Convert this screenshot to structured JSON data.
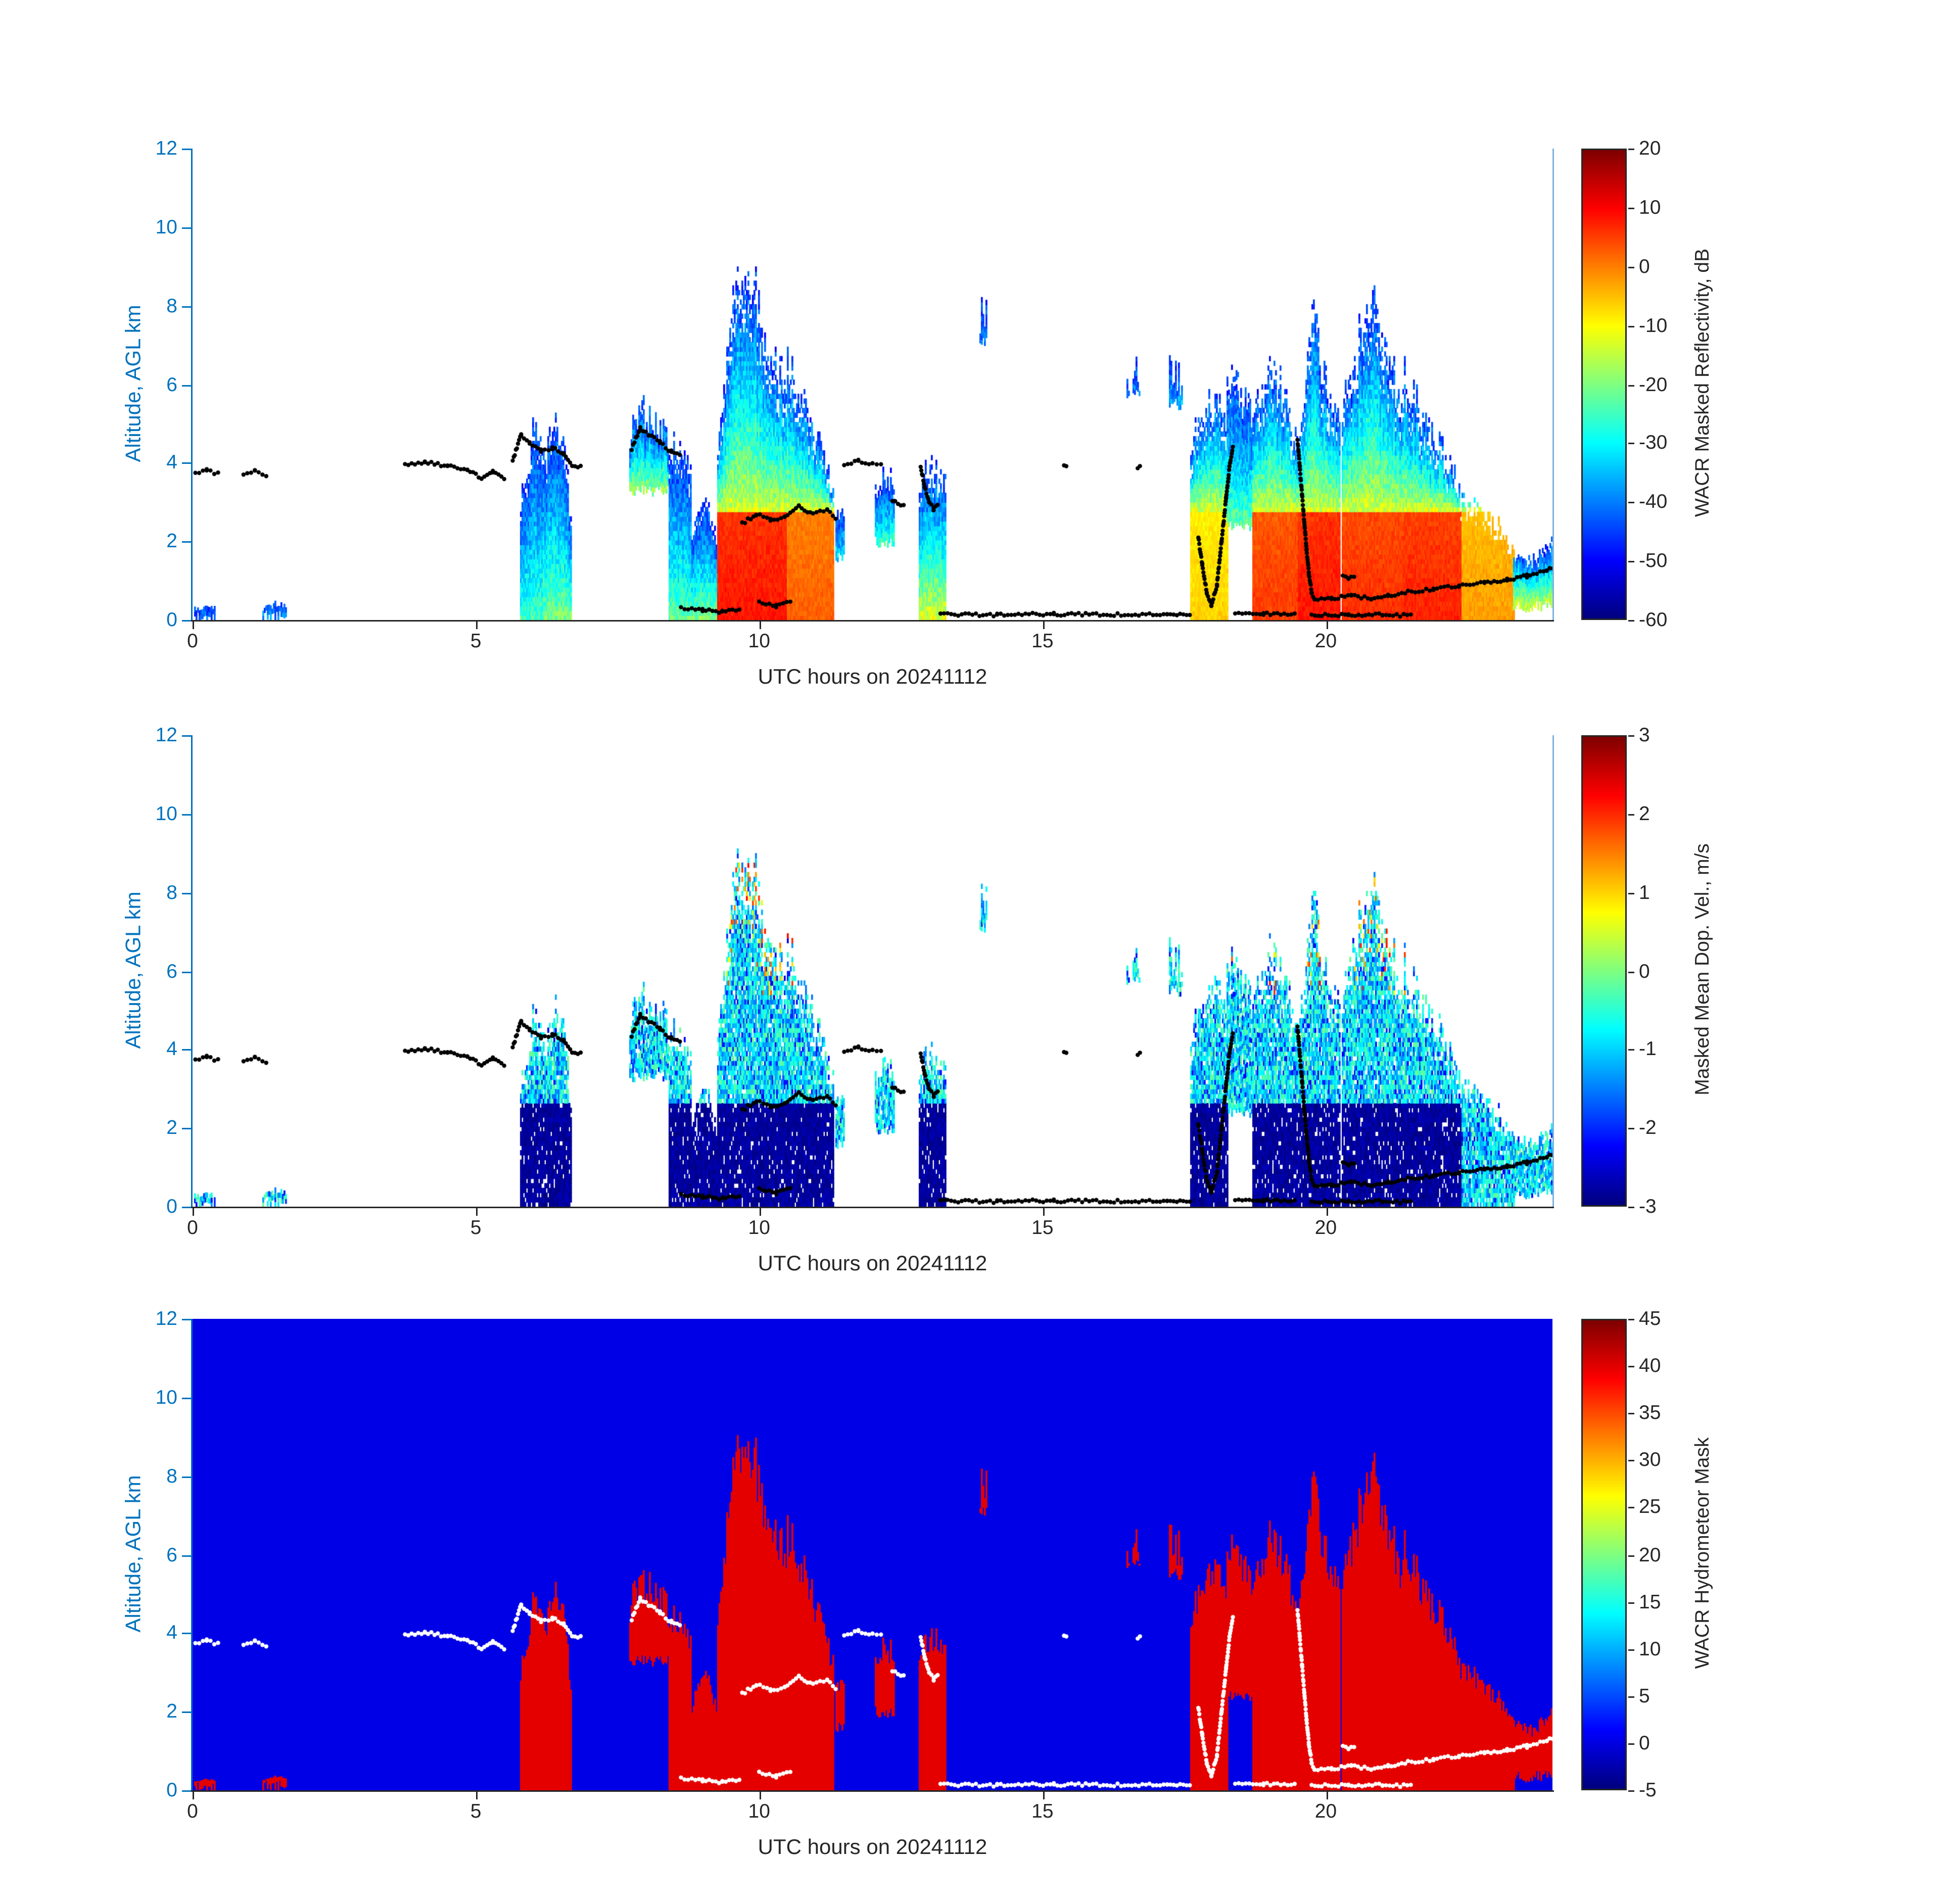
{
  "colors": {
    "y_axis": "#0072BD",
    "x_axis": "#262626",
    "right_spine": "#7FB2DF",
    "background": "#FFFFFF",
    "track_black": "#000000",
    "track_white": "#FFFFFF"
  },
  "panels": [
    {
      "id": "reflectivity",
      "ylabel": "Altitude, AGL km",
      "xlabel": "UTC hours on 20241112",
      "ylim": [
        0,
        12
      ],
      "xlim": [
        0,
        24
      ],
      "yticks": [
        0,
        2,
        4,
        6,
        8,
        10,
        12
      ],
      "xticks": [
        0,
        5,
        10,
        15,
        20
      ],
      "field": "reflectivity",
      "track_color": "#000000",
      "right_spine": true,
      "colorbar": {
        "title": "WACR Masked Reflectivity, dB",
        "min": -60,
        "max": 20,
        "ticks": [
          20,
          10,
          0,
          -10,
          -20,
          -30,
          -40,
          -50,
          -60
        ]
      }
    },
    {
      "id": "velocity",
      "ylabel": "Altitude, AGL km",
      "xlabel": "UTC hours on 20241112",
      "ylim": [
        0,
        12
      ],
      "xlim": [
        0,
        24
      ],
      "yticks": [
        0,
        2,
        4,
        6,
        8,
        10,
        12
      ],
      "xticks": [
        0,
        5,
        10,
        15,
        20
      ],
      "field": "velocity",
      "track_color": "#000000",
      "right_spine": true,
      "colorbar": {
        "title": "Masked Mean Dop. Vel., m/s",
        "min": -3,
        "max": 3,
        "ticks": [
          3,
          2,
          1,
          0,
          -1,
          -2,
          -3
        ]
      }
    },
    {
      "id": "mask",
      "ylabel": "Altitude, AGL km",
      "xlabel": "UTC hours on 20241112",
      "ylim": [
        0,
        12
      ],
      "xlim": [
        0,
        24
      ],
      "yticks": [
        0,
        2,
        4,
        6,
        8,
        10,
        12
      ],
      "xticks": [
        0,
        5,
        10,
        15,
        20
      ],
      "field": "mask",
      "track_color": "#FFFFFF",
      "right_spine": false,
      "colorbar": {
        "title": "WACR Hydrometeor Mask",
        "min": -5,
        "max": 45,
        "ticks": [
          45,
          40,
          35,
          30,
          25,
          20,
          15,
          10,
          5,
          0,
          -5
        ]
      }
    }
  ],
  "chart_data": {
    "type": "heatmap",
    "x": {
      "label": "UTC hours on 20241112",
      "range": [
        0,
        24
      ],
      "ticks": [
        0,
        5,
        10,
        15,
        20
      ]
    },
    "y": {
      "label": "Altitude, AGL km",
      "range": [
        0,
        12
      ],
      "ticks": [
        0,
        2,
        4,
        6,
        8,
        10,
        12
      ]
    },
    "fields": [
      {
        "name": "WACR Masked Reflectivity, dB",
        "colormap": "jet",
        "clim": [
          -60,
          20
        ]
      },
      {
        "name": "Masked Mean Dop. Vel., m/s",
        "colormap": "jet",
        "clim": [
          -3,
          3
        ]
      },
      {
        "name": "WACR Hydrometeor Mask",
        "colormap": "jet",
        "clim": [
          -5,
          45
        ],
        "background_value": 0,
        "cloud_value": 40
      }
    ],
    "clouds": [
      {
        "t0": 0.05,
        "t1": 0.4,
        "base": 0.05,
        "tops": [
          0.22,
          0.3,
          0.24
        ],
        "dbz": -42,
        "vd": false
      },
      {
        "t0": 1.25,
        "t1": 1.65,
        "base": 0.1,
        "tops": [
          0.28,
          0.35,
          0.3
        ],
        "dbz": -40,
        "vd": false
      },
      {
        "t0": 5.8,
        "t1": 6.17,
        "base": 0,
        "tops": [
          3.2,
          4.6,
          4.3
        ],
        "dbz": -24,
        "vd": true
      },
      {
        "t0": 6.2,
        "t1": 6.68,
        "base": 0,
        "tops": [
          4.2,
          5.0,
          4.4,
          2.6
        ],
        "dbz": -20,
        "vd": true
      },
      {
        "t0": 7.72,
        "t1": 8.38,
        "base": 3.3,
        "tops": [
          4.7,
          5.25,
          5.05,
          4.5
        ],
        "dbz": -18,
        "vd": false
      },
      {
        "t0": 8.42,
        "t1": 8.8,
        "base": 0,
        "tops": [
          4.5,
          4.2,
          3.6
        ],
        "dbz": -22,
        "vd": true
      },
      {
        "t0": 8.82,
        "t1": 9.28,
        "base": 0,
        "tops": [
          2.2,
          3.0,
          1.8
        ],
        "dbz": -20,
        "vd": true
      },
      {
        "t0": 9.28,
        "t1": 10.5,
        "base": 0,
        "tops": [
          4.5,
          7.4,
          9.1,
          8.5,
          7.2,
          6.6,
          5.6
        ],
        "dbz": 9,
        "vd": true
      },
      {
        "t0": 10.5,
        "t1": 11.3,
        "base": 0,
        "tops": [
          6.4,
          5.6,
          4.4,
          3.2
        ],
        "dbz": 3,
        "vd": true
      },
      {
        "t0": 11.35,
        "t1": 11.5,
        "base": 1.6,
        "tops": [
          2.6,
          2.9
        ],
        "dbz": -32,
        "vd": false
      },
      {
        "t0": 12.05,
        "t1": 12.38,
        "base": 2.0,
        "tops": [
          3.3,
          3.7,
          3.4
        ],
        "dbz": -26,
        "vd": false
      },
      {
        "t0": 12.82,
        "t1": 13.28,
        "base": 0,
        "tops": [
          3.5,
          3.9,
          3.4
        ],
        "dbz": -12,
        "vd": true
      },
      {
        "t0": 13.9,
        "t1": 14.05,
        "base": 7.1,
        "tops": [
          7.5
        ],
        "dbz": -42,
        "vd": false
      },
      {
        "t0": 16.5,
        "t1": 16.7,
        "base": 5.8,
        "tops": [
          6.2
        ],
        "dbz": -40,
        "vd": false
      },
      {
        "t0": 17.25,
        "t1": 17.45,
        "base": 5.5,
        "tops": [
          6.3
        ],
        "dbz": -36,
        "vd": false
      },
      {
        "t0": 17.62,
        "t1": 18.25,
        "base": 0,
        "tops": [
          4.4,
          5.6,
          5.1
        ],
        "dbz": -6,
        "vd": true
      },
      {
        "t0": 18.25,
        "t1": 18.72,
        "base": 2.4,
        "tops": [
          6.3,
          5.9,
          4.8
        ],
        "dbz": -22,
        "vd": false
      },
      {
        "t0": 18.72,
        "t1": 19.48,
        "base": 0,
        "tops": [
          4.9,
          6.6,
          5.9,
          4.6
        ],
        "dbz": 6,
        "vd": true
      },
      {
        "t0": 19.52,
        "t1": 20.25,
        "base": 0,
        "tops": [
          4.7,
          7.6,
          5.8,
          4.9
        ],
        "dbz": 9,
        "vd": true
      },
      {
        "t0": 20.3,
        "t1": 21.38,
        "base": 0,
        "tops": [
          5.4,
          7.0,
          7.9,
          6.6,
          5.3
        ],
        "dbz": 7,
        "vd": true
      },
      {
        "t0": 21.38,
        "t1": 22.4,
        "base": 0,
        "tops": [
          6.2,
          5.0,
          4.4,
          3.0
        ],
        "dbz": 8,
        "vd": true
      },
      {
        "t0": 22.4,
        "t1": 23.32,
        "base": 0,
        "tops": [
          3.1,
          2.6,
          1.9
        ],
        "dbz": -2,
        "vd": false
      },
      {
        "t0": 23.32,
        "t1": 24.0,
        "base": 0.35,
        "tops": [
          1.7,
          1.5,
          2.1
        ],
        "dbz": -14,
        "vd": false
      }
    ],
    "track_segments": [
      [
        [
          0.05,
          3.75
        ],
        [
          0.25,
          3.82
        ],
        [
          0.45,
          3.72
        ]
      ],
      [
        [
          0.9,
          3.7
        ],
        [
          1.1,
          3.78
        ],
        [
          1.3,
          3.7
        ]
      ],
      [
        [
          3.75,
          3.95
        ],
        [
          4.1,
          4.02
        ],
        [
          4.5,
          3.92
        ],
        [
          4.85,
          3.8
        ],
        [
          5.1,
          3.62
        ],
        [
          5.3,
          3.78
        ],
        [
          5.5,
          3.6
        ]
      ],
      [
        [
          5.65,
          4.05
        ],
        [
          5.8,
          4.72
        ],
        [
          5.95,
          4.5
        ],
        [
          6.15,
          4.32
        ],
        [
          6.35,
          4.38
        ],
        [
          6.55,
          4.22
        ],
        [
          6.7,
          3.95
        ],
        [
          6.85,
          3.9
        ]
      ],
      [
        [
          7.75,
          4.35
        ],
        [
          7.9,
          4.88
        ],
        [
          8.05,
          4.72
        ],
        [
          8.25,
          4.52
        ],
        [
          8.45,
          4.28
        ],
        [
          8.6,
          4.22
        ]
      ],
      [
        [
          8.62,
          0.32
        ],
        [
          9.0,
          0.25
        ],
        [
          9.35,
          0.2
        ],
        [
          9.65,
          0.28
        ]
      ],
      [
        [
          9.7,
          2.45
        ],
        [
          9.95,
          2.7
        ],
        [
          10.2,
          2.55
        ],
        [
          10.45,
          2.62
        ],
        [
          10.7,
          2.9
        ],
        [
          10.95,
          2.7
        ],
        [
          11.2,
          2.82
        ],
        [
          11.35,
          2.6
        ]
      ],
      [
        [
          10.0,
          0.45
        ],
        [
          10.3,
          0.35
        ],
        [
          10.55,
          0.5
        ]
      ],
      [
        [
          11.5,
          3.98
        ],
        [
          11.75,
          4.05
        ],
        [
          12.0,
          3.98
        ],
        [
          12.15,
          3.95
        ]
      ],
      [
        [
          12.35,
          3.05
        ],
        [
          12.55,
          2.9
        ]
      ],
      [
        [
          12.85,
          3.9
        ],
        [
          12.92,
          3.4
        ],
        [
          13.0,
          3.0
        ],
        [
          13.08,
          2.82
        ],
        [
          13.15,
          2.95
        ]
      ],
      [
        [
          13.2,
          0.15
        ],
        [
          14.2,
          0.13
        ],
        [
          15.2,
          0.15
        ],
        [
          16.2,
          0.13
        ],
        [
          17.2,
          0.15
        ],
        [
          17.6,
          0.14
        ]
      ],
      [
        [
          15.38,
          3.9
        ],
        [
          15.42,
          3.9
        ]
      ],
      [
        [
          16.68,
          3.9
        ],
        [
          16.72,
          3.9
        ]
      ],
      [
        [
          17.75,
          2.1
        ],
        [
          17.82,
          1.4
        ],
        [
          17.9,
          0.7
        ],
        [
          17.98,
          0.35
        ],
        [
          18.08,
          0.9
        ],
        [
          18.16,
          2.0
        ],
        [
          18.24,
          3.1
        ],
        [
          18.3,
          3.9
        ],
        [
          18.36,
          4.4
        ]
      ],
      [
        [
          18.4,
          0.15
        ],
        [
          18.9,
          0.15
        ],
        [
          19.45,
          0.15
        ]
      ],
      [
        [
          19.5,
          4.6
        ],
        [
          19.54,
          3.9
        ],
        [
          19.58,
          3.2
        ],
        [
          19.62,
          2.5
        ],
        [
          19.66,
          1.8
        ],
        [
          19.7,
          1.2
        ],
        [
          19.75,
          0.7
        ],
        [
          19.8,
          0.5
        ]
      ],
      [
        [
          19.8,
          0.5
        ],
        [
          20.1,
          0.55
        ],
        [
          20.45,
          0.62
        ],
        [
          20.8,
          0.55
        ],
        [
          21.1,
          0.62
        ],
        [
          21.4,
          0.68
        ]
      ],
      [
        [
          19.75,
          0.13
        ],
        [
          20.4,
          0.12
        ],
        [
          21.0,
          0.13
        ],
        [
          21.5,
          0.12
        ]
      ],
      [
        [
          20.3,
          1.15
        ],
        [
          20.4,
          1.05
        ],
        [
          20.5,
          1.1
        ]
      ],
      [
        [
          21.45,
          0.72
        ],
        [
          21.9,
          0.78
        ],
        [
          22.35,
          0.88
        ],
        [
          22.8,
          0.95
        ],
        [
          23.2,
          1.02
        ],
        [
          23.55,
          1.12
        ],
        [
          23.9,
          1.25
        ],
        [
          24.0,
          1.32
        ]
      ]
    ]
  }
}
